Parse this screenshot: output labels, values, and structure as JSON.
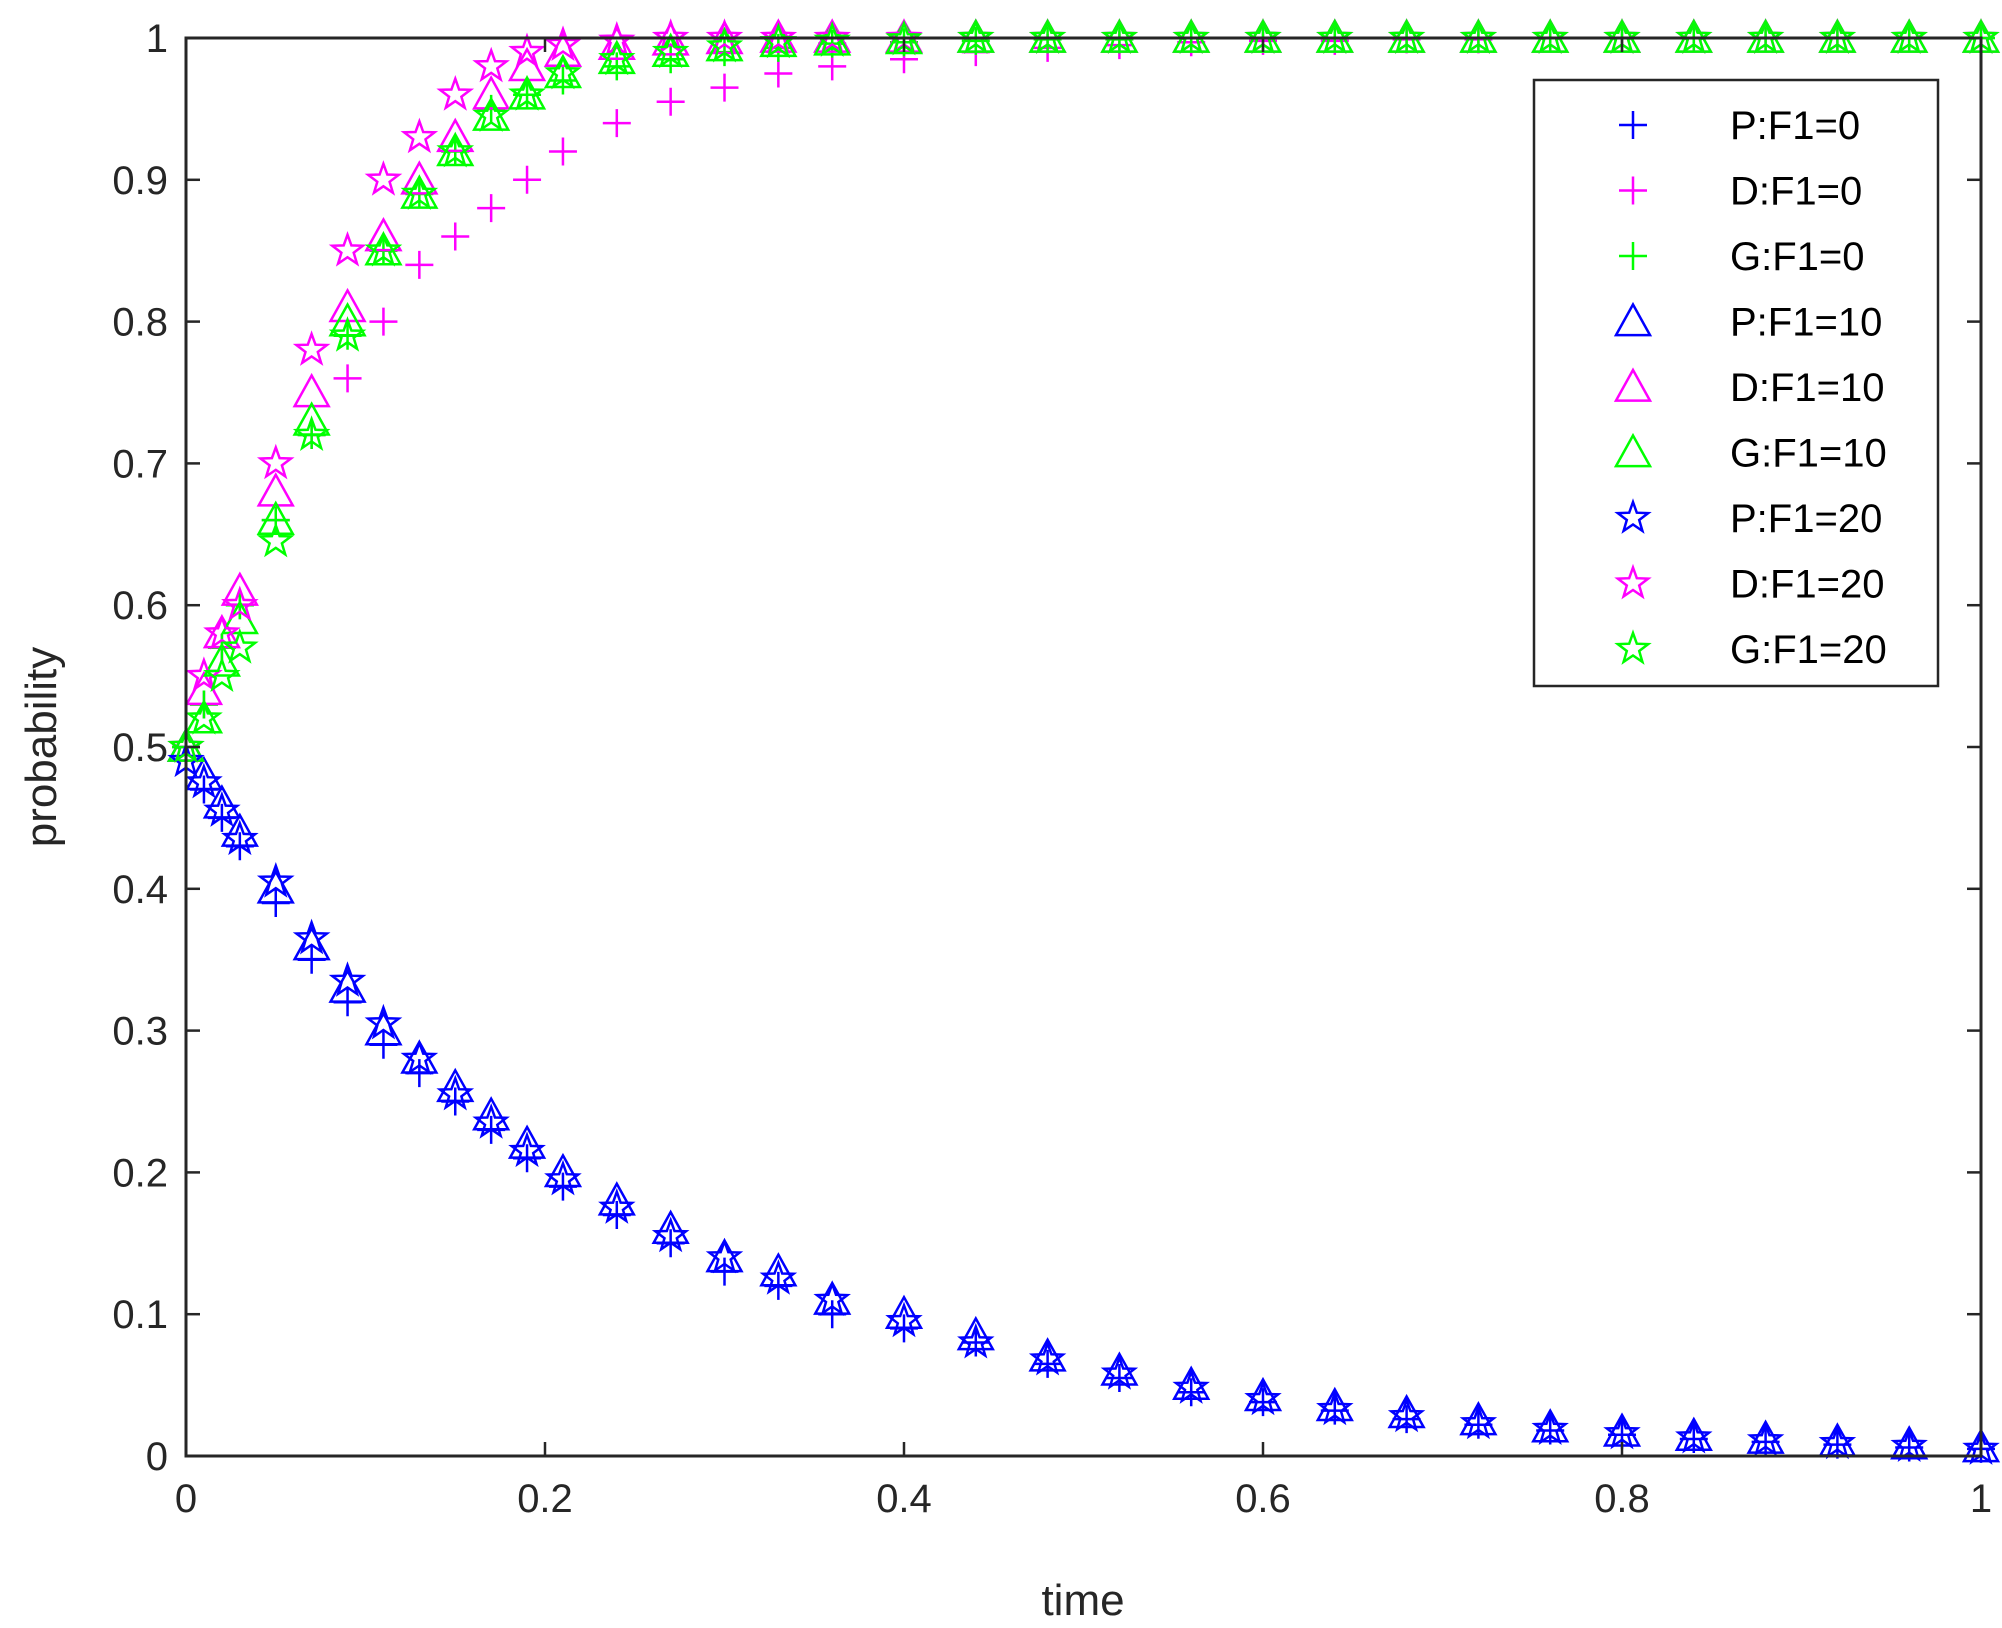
{
  "chart_data": {
    "type": "scatter",
    "title": "",
    "xlabel": "time",
    "ylabel": "probability",
    "xlim": [
      0,
      1
    ],
    "ylim": [
      0,
      1
    ],
    "xticks": [
      "0",
      "0.2",
      "0.4",
      "0.6",
      "0.8",
      "1"
    ],
    "yticks": [
      "0",
      "0.1",
      "0.2",
      "0.3",
      "0.4",
      "0.5",
      "0.6",
      "0.7",
      "0.8",
      "0.9",
      "1"
    ],
    "grid": false,
    "box": true,
    "legend_position": "top-right",
    "x": [
      0,
      0.01,
      0.02,
      0.03,
      0.05,
      0.07,
      0.09,
      0.11,
      0.13,
      0.15,
      0.17,
      0.19,
      0.21,
      0.24,
      0.27,
      0.3,
      0.33,
      0.36,
      0.4,
      0.44,
      0.48,
      0.52,
      0.56,
      0.6,
      0.64,
      0.68,
      0.72,
      0.76,
      0.8,
      0.84,
      0.88,
      0.92,
      0.96,
      1.0
    ],
    "series": [
      {
        "name": "P:F1=0",
        "color": "#0000ff",
        "marker": "plus",
        "values": [
          0.5,
          0.47,
          0.45,
          0.43,
          0.39,
          0.35,
          0.32,
          0.29,
          0.27,
          0.25,
          0.23,
          0.21,
          0.19,
          0.17,
          0.15,
          0.13,
          0.12,
          0.1,
          0.09,
          0.08,
          0.065,
          0.055,
          0.045,
          0.038,
          0.032,
          0.026,
          0.022,
          0.018,
          0.015,
          0.012,
          0.01,
          0.008,
          0.006,
          0.005
        ]
      },
      {
        "name": "D:F1=0",
        "color": "#ff00ff",
        "marker": "plus",
        "values": [
          0.5,
          0.53,
          0.57,
          0.6,
          0.66,
          0.72,
          0.76,
          0.8,
          0.84,
          0.86,
          0.88,
          0.9,
          0.92,
          0.94,
          0.955,
          0.965,
          0.975,
          0.98,
          0.985,
          0.99,
          0.993,
          0.995,
          0.997,
          0.998,
          0.998,
          0.999,
          0.999,
          1.0,
          1.0,
          1.0,
          1.0,
          1.0,
          1.0,
          1.0
        ]
      },
      {
        "name": "G:F1=0",
        "color": "#00ff00",
        "marker": "plus",
        "values": [
          0.5,
          0.53,
          0.57,
          0.6,
          0.66,
          0.72,
          0.79,
          0.85,
          0.89,
          0.92,
          0.95,
          0.96,
          0.97,
          0.98,
          0.985,
          0.99,
          0.993,
          0.996,
          0.997,
          0.998,
          0.999,
          0.999,
          1.0,
          1.0,
          1.0,
          1.0,
          1.0,
          1.0,
          1.0,
          1.0,
          1.0,
          1.0,
          1.0,
          1.0
        ]
      },
      {
        "name": "P:F1=10",
        "color": "#0000ff",
        "marker": "triangle",
        "values": [
          0.5,
          0.48,
          0.46,
          0.44,
          0.4,
          0.36,
          0.33,
          0.3,
          0.28,
          0.26,
          0.24,
          0.22,
          0.2,
          0.18,
          0.16,
          0.14,
          0.13,
          0.11,
          0.1,
          0.085,
          0.07,
          0.06,
          0.05,
          0.042,
          0.035,
          0.03,
          0.025,
          0.02,
          0.017,
          0.014,
          0.012,
          0.01,
          0.008,
          0.006
        ]
      },
      {
        "name": "D:F1=10",
        "color": "#ff00ff",
        "marker": "triangle",
        "values": [
          0.5,
          0.54,
          0.58,
          0.61,
          0.68,
          0.75,
          0.81,
          0.86,
          0.9,
          0.93,
          0.96,
          0.98,
          0.99,
          0.995,
          0.998,
          0.999,
          1.0,
          1.0,
          1.0,
          1.0,
          1.0,
          1.0,
          1.0,
          1.0,
          1.0,
          1.0,
          1.0,
          1.0,
          1.0,
          1.0,
          1.0,
          1.0,
          1.0,
          1.0
        ]
      },
      {
        "name": "G:F1=10",
        "color": "#00ff00",
        "marker": "triangle",
        "values": [
          0.5,
          0.52,
          0.56,
          0.59,
          0.66,
          0.73,
          0.8,
          0.85,
          0.89,
          0.92,
          0.945,
          0.96,
          0.975,
          0.985,
          0.99,
          0.994,
          0.997,
          0.998,
          0.999,
          1.0,
          1.0,
          1.0,
          1.0,
          1.0,
          1.0,
          1.0,
          1.0,
          1.0,
          1.0,
          1.0,
          1.0,
          1.0,
          1.0,
          1.0
        ]
      },
      {
        "name": "P:F1=20",
        "color": "#0000ff",
        "marker": "star",
        "values": [
          0.49,
          0.475,
          0.455,
          0.435,
          0.405,
          0.365,
          0.335,
          0.305,
          0.28,
          0.255,
          0.235,
          0.215,
          0.195,
          0.175,
          0.155,
          0.14,
          0.125,
          0.11,
          0.095,
          0.08,
          0.068,
          0.058,
          0.048,
          0.04,
          0.033,
          0.028,
          0.023,
          0.019,
          0.016,
          0.013,
          0.011,
          0.009,
          0.007,
          0.005
        ]
      },
      {
        "name": "D:F1=20",
        "color": "#ff00ff",
        "marker": "star",
        "values": [
          0.5,
          0.55,
          0.58,
          0.6,
          0.7,
          0.78,
          0.85,
          0.9,
          0.93,
          0.96,
          0.98,
          0.99,
          0.995,
          0.998,
          1.0,
          1.0,
          1.0,
          1.0,
          1.0,
          1.0,
          1.0,
          1.0,
          1.0,
          1.0,
          1.0,
          1.0,
          1.0,
          1.0,
          1.0,
          1.0,
          1.0,
          1.0,
          1.0,
          1.0
        ]
      },
      {
        "name": "G:F1=20",
        "color": "#00ff00",
        "marker": "star",
        "values": [
          0.5,
          0.52,
          0.55,
          0.57,
          0.645,
          0.72,
          0.79,
          0.85,
          0.89,
          0.92,
          0.945,
          0.96,
          0.975,
          0.985,
          0.99,
          0.994,
          0.997,
          0.998,
          0.999,
          1.0,
          1.0,
          1.0,
          1.0,
          1.0,
          1.0,
          1.0,
          1.0,
          1.0,
          1.0,
          1.0,
          1.0,
          1.0,
          1.0,
          1.0
        ]
      }
    ]
  }
}
